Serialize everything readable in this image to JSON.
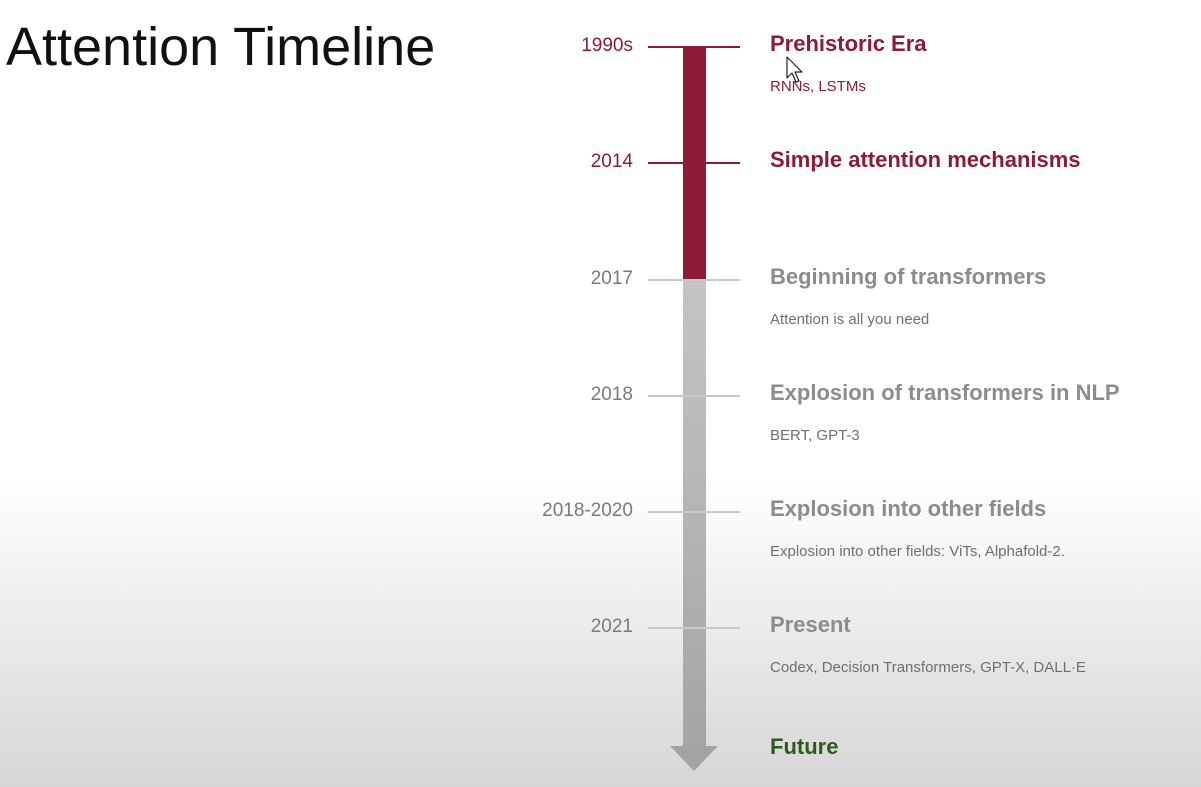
{
  "slide": {
    "title": "Attention Timeline"
  },
  "colors": {
    "past": "#8e1b35",
    "later": "#8c8c8c",
    "future": "#2e5a1c"
  },
  "timeline": {
    "events": [
      {
        "year": "1990s",
        "title": "Prehistoric Era",
        "desc": "RNNs, LSTMs",
        "state": "past"
      },
      {
        "year": "2014",
        "title": "Simple attention mechanisms",
        "desc": "",
        "state": "past"
      },
      {
        "year": "2017",
        "title": "Beginning of transformers",
        "desc": "Attention is all you need",
        "state": "later"
      },
      {
        "year": "2018",
        "title": "Explosion of transformers in NLP",
        "desc": "BERT, GPT-3",
        "state": "later"
      },
      {
        "year": "2018-2020",
        "title": "Explosion into other fields",
        "desc": "Explosion into other fields: ViTs, Alphafold-2.",
        "state": "later"
      },
      {
        "year": "2021",
        "title": "Present",
        "desc": "Codex, Decision Transformers, GPT-X,  DALL·E",
        "state": "later"
      }
    ],
    "future_label": "Future"
  }
}
